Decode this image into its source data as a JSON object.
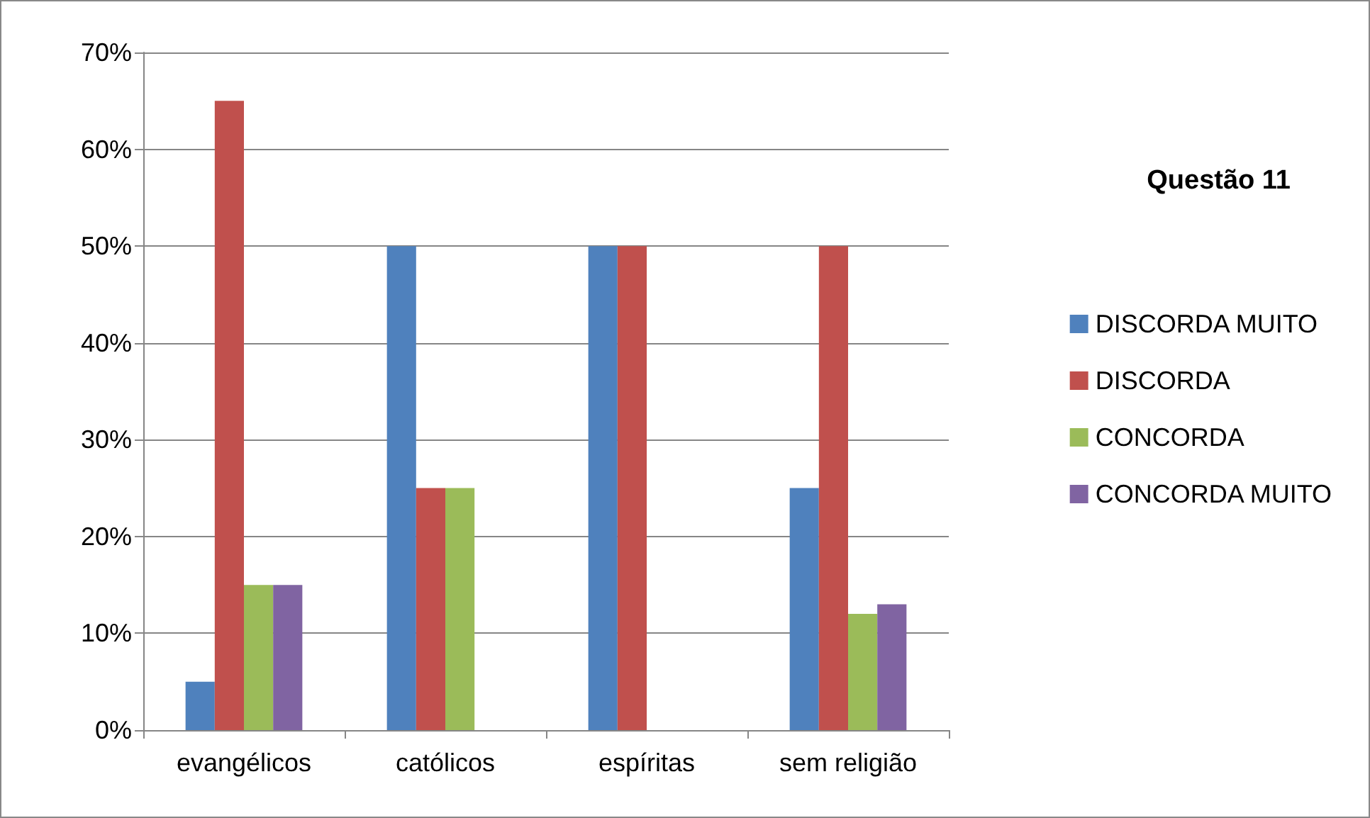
{
  "chart_data": {
    "type": "bar",
    "title": "Questão 11",
    "categories": [
      "evangélicos",
      "católicos",
      "espíritas",
      "sem religião"
    ],
    "series": [
      {
        "name": "DISCORDA MUITO",
        "color": "#4f81bd",
        "values": [
          5,
          50,
          50,
          25
        ]
      },
      {
        "name": "DISCORDA",
        "color": "#c0504d",
        "values": [
          65,
          25,
          50,
          50
        ]
      },
      {
        "name": "CONCORDA",
        "color": "#9bbb59",
        "values": [
          15,
          25,
          0,
          12
        ]
      },
      {
        "name": "CONCORDA MUITO",
        "color": "#8064a2",
        "values": [
          15,
          0,
          0,
          13
        ]
      }
    ],
    "ylim": [
      0,
      70
    ],
    "yticks": [
      {
        "value": 0,
        "label": "0%"
      },
      {
        "value": 10,
        "label": "10%"
      },
      {
        "value": 20,
        "label": "20%"
      },
      {
        "value": 30,
        "label": "30%"
      },
      {
        "value": 40,
        "label": "40%"
      },
      {
        "value": 50,
        "label": "50%"
      },
      {
        "value": 60,
        "label": "60%"
      },
      {
        "value": 70,
        "label": "70%"
      }
    ],
    "grid": "y",
    "legend": "right"
  }
}
